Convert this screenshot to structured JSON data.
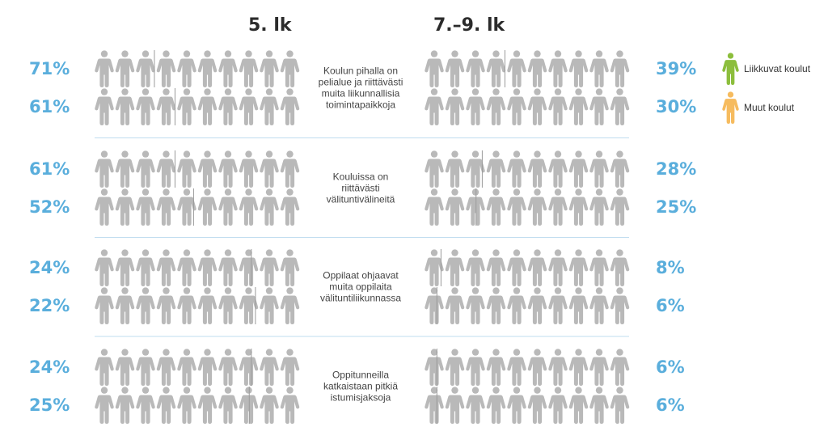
{
  "chart_data": {
    "type": "pictogram",
    "column_headers": [
      "5. lk",
      "7.–9. lk"
    ],
    "legend": [
      {
        "name": "Liikkuvat koulut",
        "color": "#8cbe3c"
      },
      {
        "name": "Muut koulut",
        "color": "#f6bb5e"
      }
    ],
    "inactive_color": "#b9b9b9",
    "figures_per_row": 10,
    "groups": [
      {
        "label": "Koulun pihalla on\npelialue ja riittävästi\nmuita liikunnallisia\ntoimintapaikkoja",
        "grade5": {
          "liikkuvat": 71,
          "muut": 61,
          "liikkuvat_text": "71%",
          "muut_text": "61%"
        },
        "grade7_9": {
          "liikkuvat": 39,
          "muut": 30,
          "liikkuvat_text": "39%",
          "muut_text": "30%"
        }
      },
      {
        "label": "Kouluissa on\nriittävästi\nvälituntivälineitä",
        "grade5": {
          "liikkuvat": 61,
          "muut": 52,
          "liikkuvat_text": "61%",
          "muut_text": "52%"
        },
        "grade7_9": {
          "liikkuvat": 28,
          "muut": 25,
          "liikkuvat_text": "28%",
          "muut_text": "25%"
        }
      },
      {
        "label": "Oppilaat ohjaavat\nmuita oppilaita\nvälituntiliikunnassa",
        "grade5": {
          "liikkuvat": 24,
          "muut": 22,
          "liikkuvat_text": "24%",
          "muut_text": "22%"
        },
        "grade7_9": {
          "liikkuvat": 8,
          "muut": 6,
          "liikkuvat_text": "8%",
          "muut_text": "6%"
        }
      },
      {
        "label": "Oppitunneilla\nkatkaistaan pitkiä\nistumisjaksoja",
        "grade5": {
          "liikkuvat": 24,
          "muut": 25,
          "liikkuvat_text": "24%",
          "muut_text": "25%"
        },
        "grade7_9": {
          "liikkuvat": 6,
          "muut": 6,
          "liikkuvat_text": "6%",
          "muut_text": "6%"
        }
      }
    ]
  }
}
